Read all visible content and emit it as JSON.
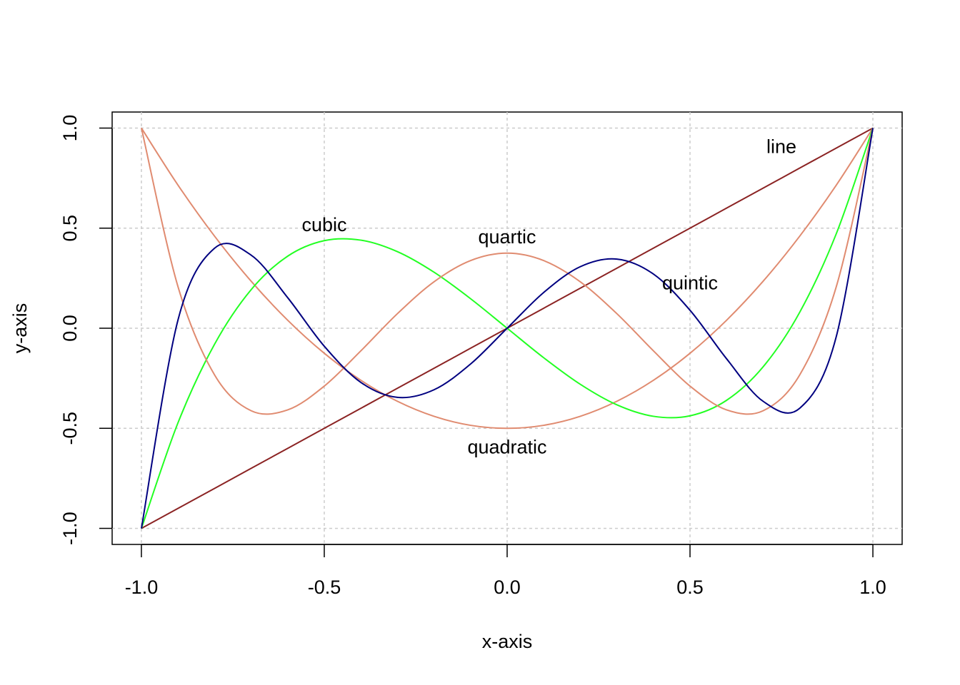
{
  "chart_data": {
    "type": "line",
    "x_label": "x-axis",
    "y_label": "y-axis",
    "x": [
      -1,
      -0.9,
      -0.8,
      -0.7,
      -0.6,
      -0.5,
      -0.4,
      -0.3,
      -0.2,
      -0.1,
      0,
      0.1,
      0.2,
      0.3,
      0.4,
      0.5,
      0.6,
      0.7,
      0.8,
      0.9,
      1
    ],
    "series": [
      {
        "color": "#8b2323",
        "values": [
          -1,
          -0.9,
          -0.8,
          -0.7,
          -0.6,
          -0.5,
          -0.4,
          -0.3,
          -0.2,
          -0.1,
          0,
          0.1,
          0.2,
          0.3,
          0.4,
          0.5,
          0.6,
          0.7,
          0.8,
          0.9,
          1
        ]
      },
      {
        "color": "#e08b70",
        "values": [
          1,
          0.715,
          0.46,
          0.235,
          0.04,
          -0.125,
          -0.26,
          -0.365,
          -0.44,
          -0.485,
          -0.5,
          -0.485,
          -0.44,
          -0.365,
          -0.26,
          -0.125,
          0.04,
          0.235,
          0.46,
          0.715,
          1
        ]
      },
      {
        "color": "#22ff22",
        "values": [
          -1,
          -0.4725,
          -0.08,
          0.1925,
          0.36,
          0.4375,
          0.44,
          0.3825,
          0.28,
          0.1475,
          0,
          -0.1475,
          -0.28,
          -0.3825,
          -0.44,
          -0.4375,
          -0.36,
          -0.1925,
          0.08,
          0.4725,
          1
        ]
      },
      {
        "color": "#e08b70",
        "values": [
          1,
          0.2079,
          -0.233,
          -0.4121,
          -0.408,
          -0.2891,
          -0.113,
          0.0729,
          0.232,
          0.3379,
          0.375,
          0.3379,
          0.232,
          0.0729,
          -0.113,
          -0.2891,
          -0.408,
          -0.4121,
          -0.233,
          0.2079,
          1
        ]
      },
      {
        "color": "#000080",
        "values": [
          -1,
          0.0411,
          0.3995,
          0.3652,
          0.1526,
          -0.0898,
          -0.2706,
          -0.3454,
          -0.3075,
          -0.1788,
          0,
          0.1788,
          0.3075,
          0.3454,
          0.2706,
          0.0898,
          -0.1526,
          -0.3652,
          -0.3995,
          -0.0411,
          1
        ]
      }
    ],
    "annotations": [
      {
        "text": "line",
        "x": 0.75,
        "y": 0.9
      },
      {
        "text": "cubic",
        "x": -0.5,
        "y": 0.51
      },
      {
        "text": "quartic",
        "x": 0,
        "y": 0.45
      },
      {
        "text": "quintic",
        "x": 0.5,
        "y": 0.22
      },
      {
        "text": "quadratic",
        "x": 0,
        "y": -0.6
      }
    ],
    "annotation_color": "#006400",
    "xlim": [
      -1.08,
      1.08
    ],
    "ylim": [
      -1.08,
      1.08
    ],
    "xticks": [
      {
        "value": -1,
        "label": "-1.0"
      },
      {
        "value": -0.5,
        "label": "-0.5"
      },
      {
        "value": 0,
        "label": "0.0"
      },
      {
        "value": 0.5,
        "label": "0.5"
      },
      {
        "value": 1,
        "label": "1.0"
      }
    ],
    "yticks": [
      {
        "value": -1,
        "label": "-1.0"
      },
      {
        "value": -0.5,
        "label": "-0.5"
      },
      {
        "value": 0,
        "label": "0.0"
      },
      {
        "value": 0.5,
        "label": "0.5"
      },
      {
        "value": 1,
        "label": "1.0"
      }
    ],
    "grid": true
  }
}
